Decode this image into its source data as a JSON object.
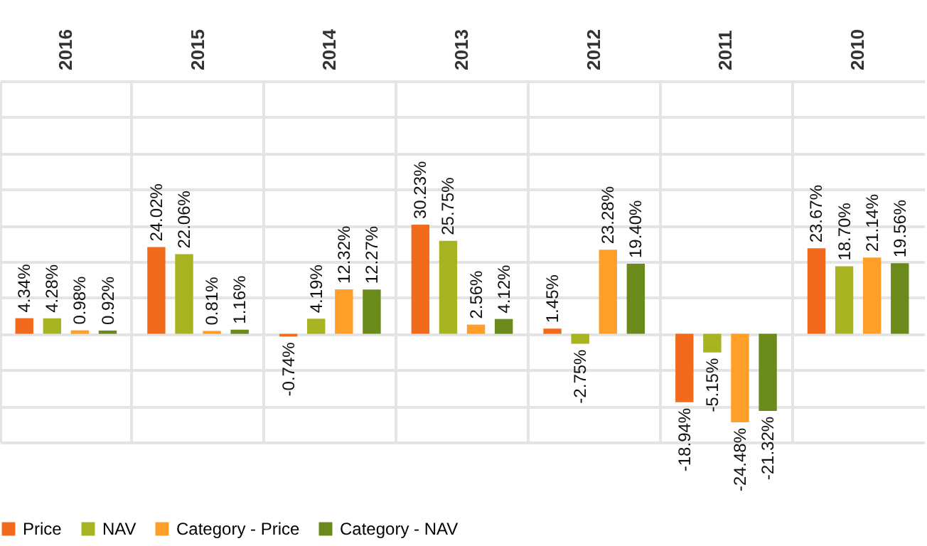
{
  "chart_data": {
    "type": "bar",
    "categories": [
      "2016",
      "2015",
      "2014",
      "2013",
      "2012",
      "2011",
      "2010"
    ],
    "series": [
      {
        "name": "Price",
        "color": "#f26b1d",
        "values": [
          4.34,
          24.02,
          -0.74,
          30.23,
          1.45,
          -18.94,
          23.67
        ],
        "value_labels": [
          "4.34%",
          "24.02%",
          "-0.74%",
          "30.23%",
          "1.45%",
          "-18.94%",
          "23.67%"
        ]
      },
      {
        "name": "NAV",
        "color": "#a8b322",
        "values": [
          4.28,
          22.06,
          4.19,
          25.75,
          -2.75,
          -5.15,
          18.7
        ],
        "value_labels": [
          "4.28%",
          "22.06%",
          "4.19%",
          "25.75%",
          "-2.75%",
          "-5.15%",
          "18.70%"
        ]
      },
      {
        "name": "Category - Price",
        "color": "#ff9f2a",
        "values": [
          0.98,
          0.81,
          12.32,
          2.56,
          23.28,
          -24.48,
          21.14
        ],
        "value_labels": [
          "0.98%",
          "0.81%",
          "12.32%",
          "2.56%",
          "23.28%",
          "-24.48%",
          "21.14%"
        ]
      },
      {
        "name": "Category - NAV",
        "color": "#6b8a1c",
        "values": [
          0.92,
          1.16,
          12.27,
          4.12,
          19.4,
          -21.32,
          19.56
        ],
        "value_labels": [
          "0.92%",
          "1.16%",
          "12.27%",
          "4.12%",
          "19.40%",
          "-21.32%",
          "19.56%"
        ]
      }
    ],
    "ylim": [
      -30,
      70
    ],
    "tick_labels": "x",
    "grid": true,
    "legend": "bottom"
  }
}
